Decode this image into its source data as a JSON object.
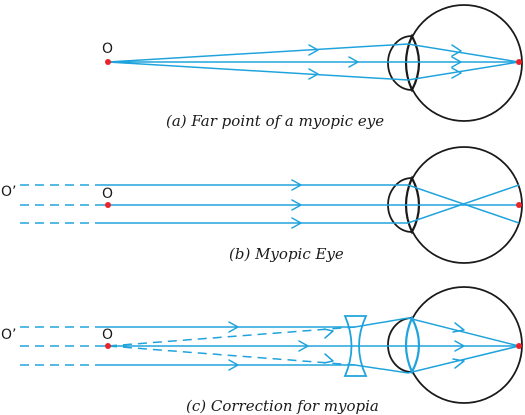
{
  "colors": {
    "ray": "#1fa3dc",
    "eye_outline": "#1a1a1a",
    "point": "#e8242a",
    "text": "#1a1a1a"
  },
  "panels": [
    {
      "id": "a",
      "caption": "(a) Far point of a myopic eye",
      "point_labels": [
        "O"
      ]
    },
    {
      "id": "b",
      "caption": "(b) Myopic Eye",
      "point_labels": [
        "O’",
        "O"
      ]
    },
    {
      "id": "c",
      "caption": "(c) Correction for myopia",
      "point_labels": [
        "O’",
        "O"
      ]
    }
  ]
}
